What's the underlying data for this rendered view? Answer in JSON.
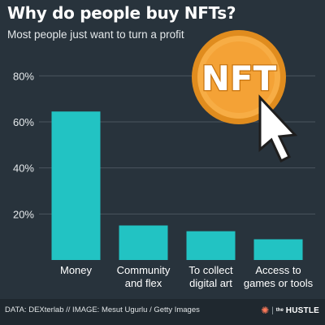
{
  "header": {
    "title": "Why do people buy NFTs?",
    "subtitle": "Most people just want to turn a profit"
  },
  "illustration": {
    "coin_text": "NFT",
    "coin_color": "#f4a236",
    "cursor_icon": "arrow-cursor-icon"
  },
  "chart_data": {
    "type": "bar",
    "categories": [
      [
        "Money"
      ],
      [
        "Community",
        "and flex"
      ],
      [
        "To collect",
        "digital art"
      ],
      [
        "Access to",
        "games or tools"
      ]
    ],
    "values": [
      64.5,
      15,
      12.5,
      9
    ],
    "ylim": [
      0,
      84
    ],
    "yticks": [
      20,
      40,
      60,
      80
    ],
    "ytick_labels": [
      "20%",
      "40%",
      "60%",
      "80%"
    ],
    "grid": true,
    "bar_color": "#22c3c3",
    "grid_color": "#4a555e"
  },
  "footer": {
    "source": "DATA: DEXterlab // IMAGE: Mesut Ugurlu / Getty Images",
    "brand_the": "the",
    "brand_name": "HUSTLE"
  }
}
